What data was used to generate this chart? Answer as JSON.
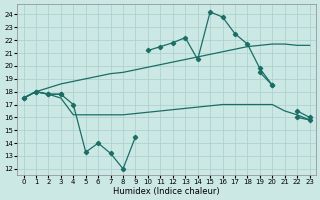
{
  "xlabel": "Humidex (Indice chaleur)",
  "xlim": [
    -0.5,
    23.5
  ],
  "ylim": [
    11.5,
    24.8
  ],
  "yticks": [
    12,
    13,
    14,
    15,
    16,
    17,
    18,
    19,
    20,
    21,
    22,
    23,
    24
  ],
  "xticks": [
    0,
    1,
    2,
    3,
    4,
    5,
    6,
    7,
    8,
    9,
    10,
    11,
    12,
    13,
    14,
    15,
    16,
    17,
    18,
    19,
    20,
    21,
    22,
    23
  ],
  "bg_color": "#cce8e5",
  "grid_color": "#aacfcc",
  "line_color": "#1a6e65",
  "line_upper_smooth_x": [
    0,
    1,
    2,
    3,
    4,
    5,
    6,
    7,
    8,
    9,
    10,
    11,
    12,
    13,
    14,
    15,
    16,
    17,
    18,
    19,
    20,
    21,
    22,
    23
  ],
  "line_upper_smooth_y": [
    17.5,
    18.0,
    18.3,
    18.6,
    18.8,
    19.0,
    19.2,
    19.4,
    19.5,
    19.7,
    19.9,
    20.1,
    20.3,
    20.5,
    20.7,
    20.9,
    21.1,
    21.3,
    21.5,
    21.6,
    21.7,
    21.7,
    21.6,
    21.6
  ],
  "line_lower_smooth_x": [
    0,
    1,
    2,
    3,
    4,
    5,
    6,
    7,
    8,
    9,
    10,
    11,
    12,
    13,
    14,
    15,
    16,
    17,
    18,
    19,
    20,
    21,
    22,
    23
  ],
  "line_lower_smooth_y": [
    17.5,
    18.0,
    17.8,
    17.5,
    16.2,
    16.2,
    16.2,
    16.2,
    16.2,
    16.3,
    16.4,
    16.5,
    16.6,
    16.7,
    16.8,
    16.9,
    17.0,
    17.0,
    17.0,
    17.0,
    17.0,
    16.5,
    16.2,
    15.8
  ],
  "line_top_jagged_x": [
    0,
    1,
    2,
    3,
    10,
    11,
    12,
    13,
    14,
    15,
    16,
    17,
    18,
    19,
    20,
    22,
    23
  ],
  "line_top_jagged_y": [
    17.5,
    18.0,
    17.8,
    17.8,
    21.2,
    21.5,
    21.8,
    22.2,
    20.5,
    24.2,
    23.8,
    22.5,
    21.7,
    19.8,
    18.5,
    16.5,
    16.0
  ],
  "line_bot_jagged_x": [
    0,
    1,
    2,
    3,
    4,
    5,
    6,
    7,
    8,
    9,
    19,
    20,
    22,
    23
  ],
  "line_bot_jagged_y": [
    17.5,
    18.0,
    17.8,
    17.8,
    17.0,
    13.3,
    14.0,
    13.2,
    12.0,
    14.5,
    19.5,
    18.5,
    16.0,
    15.8
  ]
}
